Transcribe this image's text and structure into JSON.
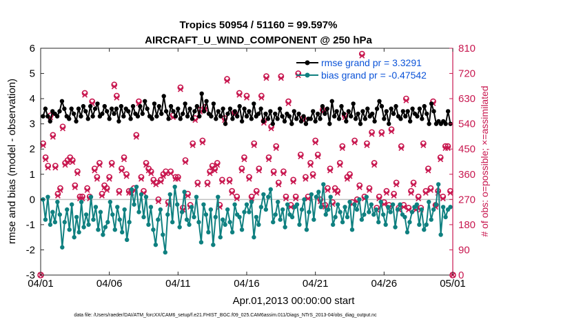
{
  "chart_data": {
    "type": "line",
    "title": "Tropics 50954 / 51160 = 99.597%",
    "subtitle": "AIRCRAFT_U_WIND_COMPONENT @ 250 hPa",
    "xlabel": "Apr.01,2013 00:00:00 start",
    "ylabel": "rmse and bias (model - observation)",
    "ylabel_right": "# of obs: o=possible; ×=assimilated",
    "footnote": "data file: /Users/raeder/DAI/ATM_forcXX/CAM6_setup/f.e21.FHIST_BGC.f09_025.CAM6assim.011/Diags_NTrS_2013-04/obs_diag_output.nc",
    "ylim": [
      -3,
      6
    ],
    "ylim_right": [
      0,
      810
    ],
    "xlim": [
      0,
      30
    ],
    "x_ticks": [
      0,
      5,
      10,
      15,
      20,
      25,
      30
    ],
    "x_tick_labels": [
      "04/01",
      "04/06",
      "04/11",
      "04/16",
      "04/21",
      "04/26",
      "05/01"
    ],
    "y_ticks": [
      -3,
      -2,
      -1,
      0,
      1,
      2,
      3,
      4,
      5,
      6
    ],
    "y_tick_labels": [
      "-3",
      "-2",
      "-1",
      "0",
      "1",
      "2",
      "3",
      "4",
      "5",
      "6"
    ],
    "y_ticks_right": [
      0,
      90,
      180,
      270,
      360,
      450,
      540,
      630,
      720,
      810
    ],
    "y_tick_labels_right": [
      "0",
      "90",
      "180",
      "270",
      "360",
      "450",
      "540",
      "630",
      "720",
      "810"
    ],
    "legend_position": "top-right",
    "zero_line": true,
    "series": [
      {
        "name": "rmse grand pr = 3.3291",
        "color": "#000000",
        "axis": "left",
        "values": [
          3.3,
          3.6,
          3.3,
          3.1,
          3.5,
          3.4,
          3.3,
          3.5,
          3.9,
          3.6,
          3.3,
          3.2,
          3.6,
          3.4,
          3.1,
          3.6,
          3.3,
          3.7,
          3.5,
          3.2,
          3.7,
          3.3,
          3.6,
          3.8,
          3.3,
          3.4,
          3.7,
          3.5,
          3.2,
          3.6,
          3.4,
          3.6,
          3.1,
          3.7,
          3.3,
          3.6,
          3.5,
          3.2,
          3.7,
          3.4,
          3.3,
          3.7,
          3.4,
          3.9,
          3.6,
          3.3,
          3.2,
          3.8,
          3.3,
          3.7,
          3.4,
          4.1,
          3.5,
          3.2,
          3.7,
          3.5,
          3.3,
          3.6,
          3.2,
          3.4,
          3.8,
          3.3,
          3.6,
          3.2,
          3.5,
          3.7,
          3.3,
          4.2,
          3.5,
          3.9,
          3.4,
          3.3,
          3.8,
          3.2,
          3.5,
          3.3,
          3.6,
          3.0,
          3.4,
          3.6,
          3.2,
          3.5,
          3.3,
          3.7,
          3.1,
          3.6,
          3.3,
          3.5,
          3.2,
          3.8,
          3.3,
          3.4,
          3.6,
          3.1,
          3.4,
          3.2,
          3.5,
          3.0,
          3.4,
          3.2,
          3.6,
          3.3,
          3.1,
          3.4,
          3.3,
          3.0,
          3.5,
          3.2,
          3.4,
          3.1,
          3.3,
          3.0,
          3.2,
          3.2,
          3.5,
          3.1,
          3.4,
          3.2,
          3.7,
          3.4,
          3.6,
          3.0,
          3.9,
          3.3,
          3.5,
          3.2,
          3.7,
          3.4,
          3.1,
          3.5,
          3.3,
          3.8,
          3.2,
          3.4,
          3.0,
          3.5,
          3.2,
          3.6,
          3.3,
          3.4,
          3.1,
          3.6,
          3.9,
          3.7,
          3.2,
          3.5,
          3.0,
          3.6,
          3.4,
          3.7,
          3.3,
          3.2,
          3.5,
          3.3,
          3.5,
          3.1,
          3.6,
          3.4,
          3.3,
          3.6,
          3.2,
          3.7,
          3.4,
          3.0,
          3.8,
          3.5,
          3.0,
          3.1,
          3.0,
          3.1,
          3.0,
          3.5,
          3.0
        ]
      },
      {
        "name": "bias grand pr = -0.47542",
        "color": "#0f8080",
        "axis": "left",
        "values": [
          0.0,
          -0.8,
          0.1,
          -1.0,
          -0.5,
          -0.9,
          -0.1,
          -0.6,
          -1.9,
          -0.9,
          -0.4,
          -1.2,
          -0.2,
          -1.5,
          -0.7,
          -1.3,
          -0.1,
          -1.1,
          -0.6,
          -1.0,
          0.1,
          -0.8,
          -0.3,
          -1.2,
          -0.5,
          -1.4,
          -1.1,
          -0.9,
          -0.1,
          -0.6,
          -1.2,
          -0.3,
          -0.8,
          -1.3,
          -0.4,
          -1.6,
          -0.9,
          0.4,
          -0.2,
          0.5,
          -0.5,
          0.2,
          -0.7,
          0.1,
          -1.0,
          -0.3,
          -1.2,
          -1.8,
          -0.8,
          -0.4,
          -1.4,
          -2.1,
          -0.6,
          0.2,
          -0.9,
          0.5,
          -0.2,
          -1.1,
          -0.5,
          0.3,
          -0.8,
          -1.0,
          -0.3,
          -0.7,
          0.1,
          -0.9,
          -1.7,
          -0.2,
          -0.6,
          -1.3,
          -0.4,
          -1.8,
          -0.7,
          0.1,
          -1.5,
          -0.8,
          -1.0,
          -0.4,
          -0.9,
          -1.3,
          -0.2,
          -0.6,
          -0.7,
          -1.2,
          -0.5,
          -0.2,
          -0.5,
          -0.1,
          -1.5,
          -0.7,
          -1.0,
          -0.3,
          0.2,
          -0.4,
          0.1,
          0.4,
          -0.9,
          -0.6,
          -0.1,
          -0.8,
          -0.4,
          -1.1,
          -0.2,
          -0.6,
          -0.7,
          -0.3,
          -0.2,
          -1.0,
          -0.4,
          0.0,
          -1.2,
          -0.5,
          0.2,
          -0.8,
          0.1,
          0.3,
          -0.3,
          0.6,
          -0.6,
          -0.4,
          0.1,
          -1.0,
          -0.7,
          -0.2,
          -0.5,
          -0.9,
          -0.3,
          -0.7,
          -0.1,
          -1.2,
          -0.2,
          -0.4,
          0.0,
          -0.8,
          -0.6,
          0.1,
          -0.5,
          -0.2,
          -0.6,
          -0.4,
          -0.9,
          -0.1,
          -0.6,
          -1.0,
          -0.3,
          -0.5,
          -0.2,
          -1.1,
          -0.4,
          -0.2,
          -0.6,
          -0.7,
          -1.3,
          -0.9,
          -0.5,
          -0.3,
          -0.2,
          -1.0,
          -0.4,
          -1.2,
          -1.0,
          -0.1,
          -0.8,
          -0.4,
          -0.2,
          0.6,
          -1.4,
          -0.3,
          -0.7,
          -0.4,
          -0.3
        ]
      }
    ],
    "obs_counts": {
      "axis": "right",
      "color": "#c8174f",
      "possible": [
        470,
        420,
        390,
        570,
        500,
        390,
        290,
        310,
        530,
        400,
        410,
        420,
        410,
        320,
        370,
        280,
        280,
        650,
        310,
        280,
        620,
        380,
        350,
        400,
        290,
        320,
        310,
        350,
        400,
        680,
        640,
        300,
        380,
        420,
        360,
        300,
        300,
        310,
        500,
        620,
        350,
        300,
        400,
        380,
        370,
        340,
        330,
        270,
        340,
        360,
        370,
        260,
        370,
        570,
        350,
        350,
        670,
        240,
        410,
        290,
        250,
        470,
        560,
        330,
        590,
        480,
        600,
        330,
        370,
        390,
        380,
        400,
        250,
        340,
        560,
        700,
        340,
        300,
        580,
        280,
        650,
        380,
        420,
        640,
        350,
        280,
        470,
        300,
        380,
        640,
        550,
        710,
        420,
        530,
        370,
        460,
        330,
        710,
        370,
        280,
        620,
        250,
        340,
        280,
        720,
        430,
        560,
        350,
        280,
        400,
        360,
        480,
        430,
        270,
        590,
        250,
        310,
        380,
        260,
        310,
        300,
        400,
        460,
        570,
        350,
        360,
        260,
        480,
        270,
        320,
        790,
        280,
        470,
        310,
        510,
        400,
        240,
        280,
        510,
        260,
        300,
        250,
        520,
        290,
        330,
        240,
        460,
        250,
        630,
        240,
        300,
        330,
        240,
        280,
        240,
        470,
        300,
        380,
        310,
        620,
        250,
        300,
        420,
        280,
        460,
        460,
        300
      ],
      "assimilated_offset": -7
    }
  }
}
